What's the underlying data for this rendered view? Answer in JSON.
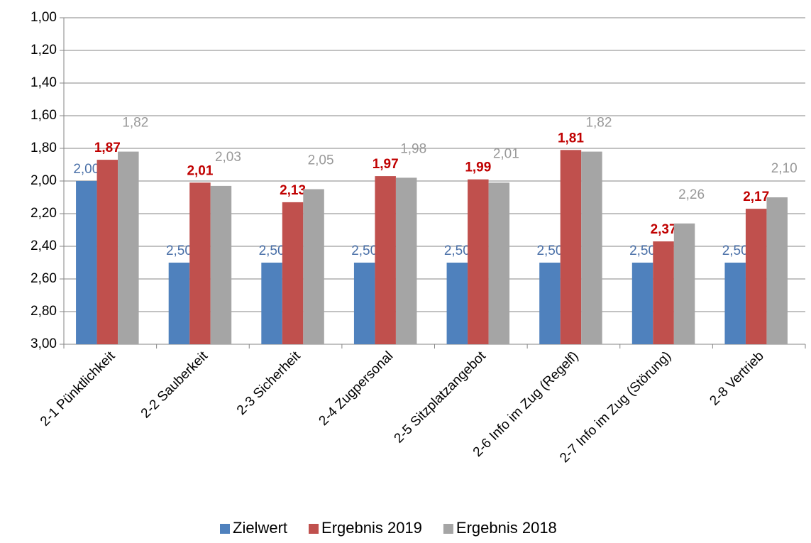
{
  "chart_data": {
    "type": "bar",
    "categories": [
      "2-1 Pünktlichkeit",
      "2-2 Sauberkeit",
      "2-3 Sicherheit",
      "2-4 Zugpersonal",
      "2-5 Sitzplatzangebot",
      "2-6 Info im Zug (Regelf)",
      "2-7 Info im Zug (Störung)",
      "2-8 Vertrieb"
    ],
    "series": [
      {
        "name": "Zielwert",
        "color": "#4f81bd",
        "label_color": "#4a70a8",
        "label_bold": false,
        "values": [
          2.0,
          2.5,
          2.5,
          2.5,
          2.5,
          2.5,
          2.5,
          2.5
        ],
        "value_labels": [
          "2,00",
          "2,50",
          "2,50",
          "2,50",
          "2,50",
          "2,50",
          "2,50",
          "2,50"
        ]
      },
      {
        "name": "Ergebnis 2019",
        "color": "#c0504d",
        "label_color": "#c00000",
        "label_bold": true,
        "values": [
          1.87,
          2.01,
          2.13,
          1.97,
          1.99,
          1.81,
          2.37,
          2.17
        ],
        "value_labels": [
          "1,87",
          "2,01",
          "2,13",
          "1,97",
          "1,99",
          "1,81",
          "2,37",
          "2,17"
        ]
      },
      {
        "name": "Ergebnis 2018",
        "color": "#a5a5a5",
        "label_color": "#999999",
        "label_bold": false,
        "values": [
          1.82,
          2.03,
          2.05,
          1.98,
          2.01,
          1.82,
          2.26,
          2.1
        ],
        "value_labels": [
          "1,82",
          "2,03",
          "2,05",
          "1,98",
          "2,01",
          "1,82",
          "2,26",
          "2,10"
        ]
      }
    ],
    "ylim": [
      3.0,
      1.0
    ],
    "yticks": [
      {
        "value": 1.0,
        "label": "1,00"
      },
      {
        "value": 1.2,
        "label": "1,20"
      },
      {
        "value": 1.4,
        "label": "1,40"
      },
      {
        "value": 1.6,
        "label": "1,60"
      },
      {
        "value": 1.8,
        "label": "1,80"
      },
      {
        "value": 2.0,
        "label": "2,00"
      },
      {
        "value": 2.2,
        "label": "2,20"
      },
      {
        "value": 2.4,
        "label": "2,40"
      },
      {
        "value": 2.6,
        "label": "2,60"
      },
      {
        "value": 2.8,
        "label": "2,80"
      },
      {
        "value": 3.0,
        "label": "3,00"
      }
    ],
    "grid": true,
    "legend": "bottom"
  }
}
